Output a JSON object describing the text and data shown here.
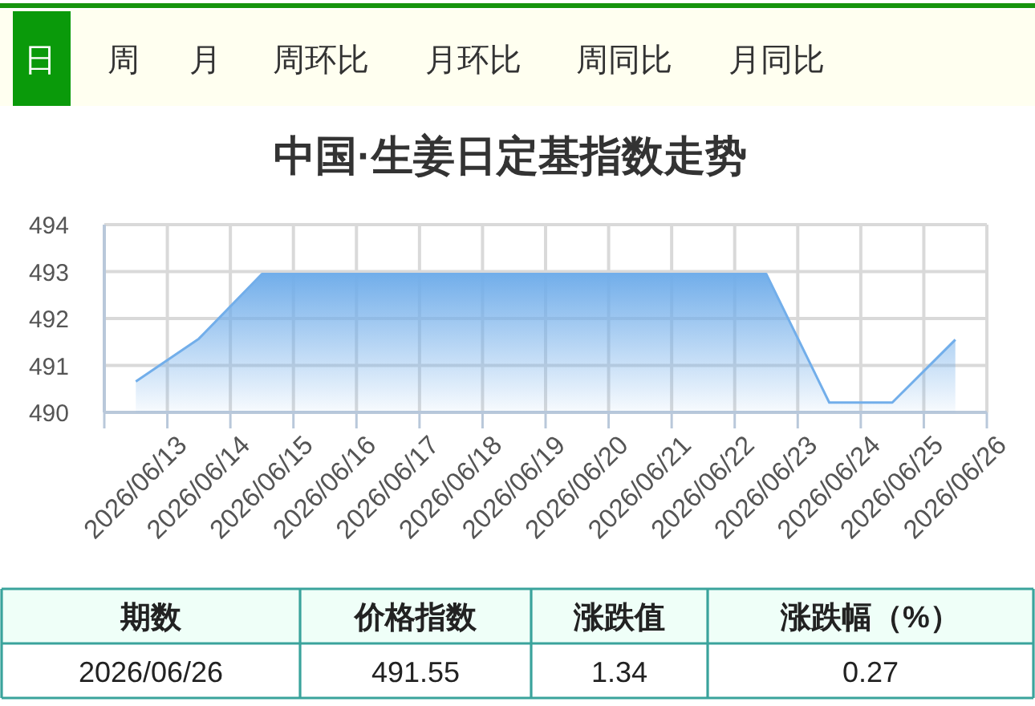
{
  "chart_data": [
    {
      "type": "other",
      "annotations": [
        "日",
        "周",
        "月",
        "周环比",
        "月环比",
        "周同比",
        "月同比"
      ]
    },
    {
      "type": "area",
      "title": "中国·生姜日定基指数走势",
      "categories": [
        "2026/06/13",
        "2026/06/14",
        "2026/06/15",
        "2026/06/16",
        "2026/06/17",
        "2026/06/18",
        "2026/06/19",
        "2026/06/20",
        "2026/06/21",
        "2026/06/22",
        "2026/06/23",
        "2026/06/24",
        "2026/06/25",
        "2026/06/26"
      ],
      "values": [
        490.66,
        491.57,
        492.95,
        492.95,
        492.95,
        492.95,
        492.95,
        492.95,
        492.95,
        492.95,
        492.95,
        490.21,
        490.21,
        491.55
      ],
      "color": "#72aeea",
      "ylim": [
        490,
        494
      ],
      "yticks": [
        490,
        491,
        492,
        493,
        494
      ],
      "grid": true
    },
    {
      "type": "other",
      "annotations": [
        "期数",
        "价格指数",
        "涨跌值",
        "涨跌幅（%）",
        "2026/06/26",
        "491.55",
        "1.34",
        "0.27"
      ]
    }
  ]
}
